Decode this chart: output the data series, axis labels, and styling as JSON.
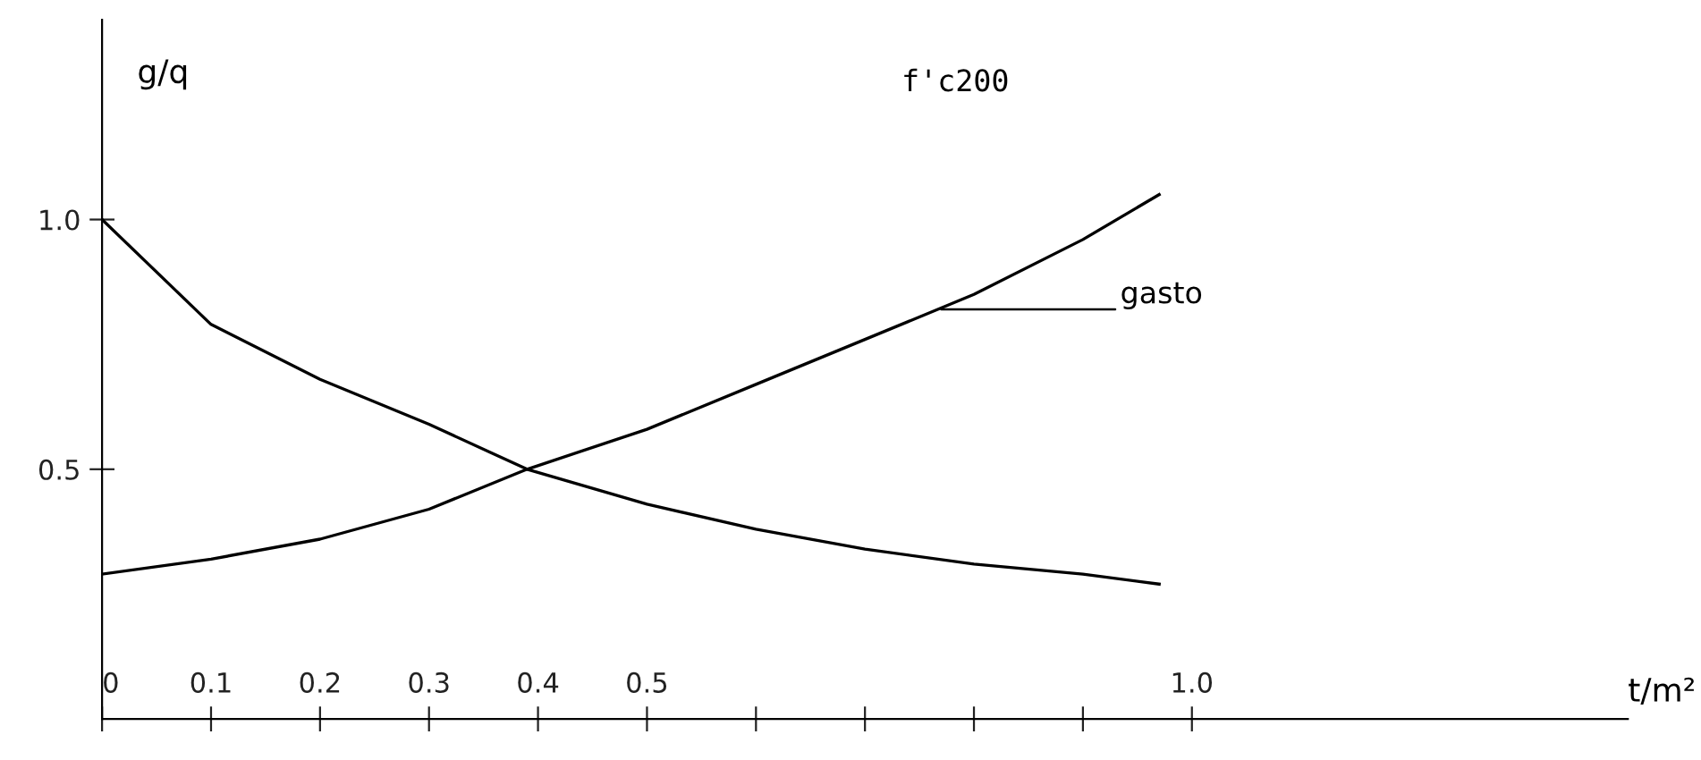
{
  "chart_data": {
    "type": "line",
    "xlabel": "t/m²",
    "ylabel": "g/q",
    "xlim": [
      0,
      1.4
    ],
    "ylim": [
      0,
      1.4
    ],
    "xticks": [
      0,
      {
        "value": 0.1,
        "label": "0.1"
      },
      {
        "value": 0.2,
        "label": "0.2"
      },
      {
        "value": 0.3,
        "label": "0.3"
      },
      {
        "value": 0.4,
        "label": "0.4"
      },
      {
        "value": 0.5,
        "label": "0.5"
      },
      {
        "value": 0.6,
        "label": null
      },
      {
        "value": 0.7,
        "label": null
      },
      {
        "value": 0.8,
        "label": null
      },
      {
        "value": 0.9,
        "label": null
      },
      {
        "value": 1.0,
        "label": "1.0"
      }
    ],
    "yticks": [
      {
        "value": 0.5,
        "label": "0.5"
      },
      {
        "value": 1.0,
        "label": "1.0"
      }
    ],
    "series": [
      {
        "color": "#000000",
        "x": [
          0,
          0.1,
          0.2,
          0.3,
          0.39,
          0.5,
          0.6,
          0.7,
          0.8,
          0.9,
          0.97
        ],
        "values": [
          1.0,
          0.79,
          0.68,
          0.59,
          0.5,
          0.43,
          0.38,
          0.34,
          0.31,
          0.29,
          0.27
        ]
      },
      {
        "color": "#000000",
        "x": [
          0,
          0.1,
          0.2,
          0.3,
          0.39,
          0.5,
          0.6,
          0.7,
          0.8,
          0.9,
          0.97
        ],
        "values": [
          0.29,
          0.32,
          0.36,
          0.42,
          0.5,
          0.58,
          0.67,
          0.76,
          0.85,
          0.96,
          1.05
        ]
      }
    ],
    "annotations": [
      {
        "text": "gasto",
        "x": 0.77,
        "y": 0.82
      },
      "f'c200"
    ],
    "grid": false,
    "marker": "none",
    "line_style": "solid"
  }
}
